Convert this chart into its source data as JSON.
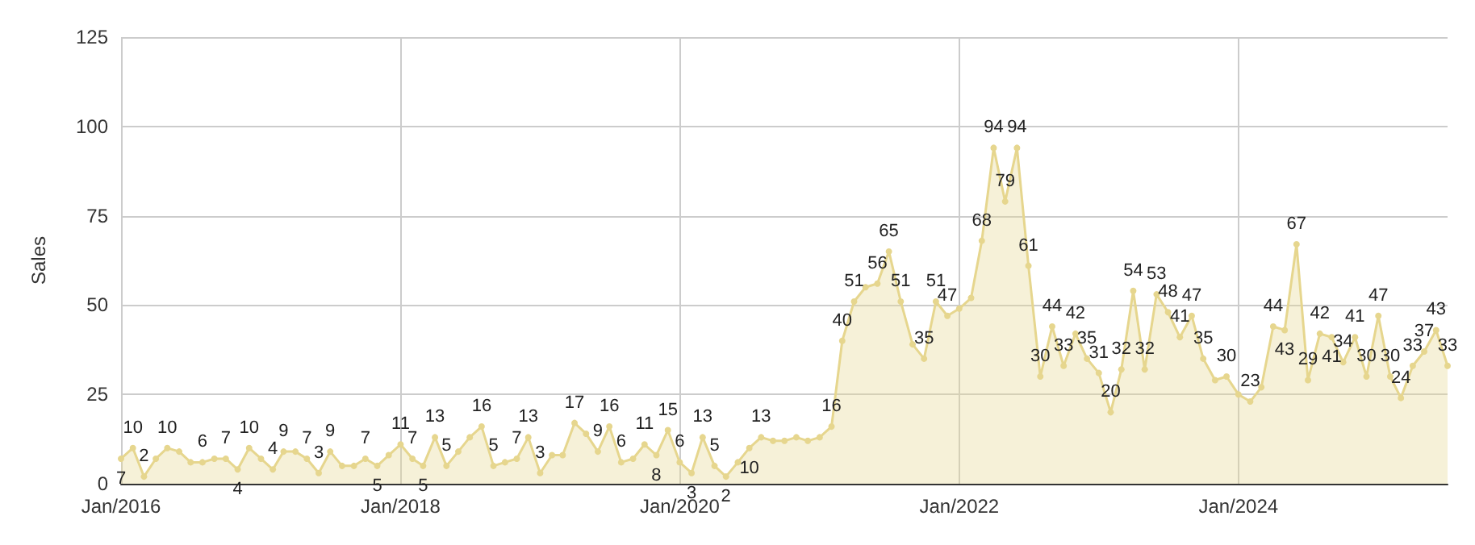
{
  "chart_data": {
    "type": "area",
    "ylabel": "Sales",
    "color": "#e6d68e",
    "grid": true,
    "marker": "circle",
    "line_style": "solid",
    "x": [
      "2016-01",
      "2016-02",
      "2016-03",
      "2016-04",
      "2016-05",
      "2016-06",
      "2016-07",
      "2016-08",
      "2016-09",
      "2016-10",
      "2016-11",
      "2016-12",
      "2017-01",
      "2017-02",
      "2017-03",
      "2017-04",
      "2017-05",
      "2017-06",
      "2017-07",
      "2017-08",
      "2017-09",
      "2017-10",
      "2017-11",
      "2017-12",
      "2018-01",
      "2018-02",
      "2018-03",
      "2018-04",
      "2018-05",
      "2018-06",
      "2018-07",
      "2018-08",
      "2018-09",
      "2018-10",
      "2018-11",
      "2018-12",
      "2019-01",
      "2019-02",
      "2019-03",
      "2019-04",
      "2019-05",
      "2019-06",
      "2019-07",
      "2019-08",
      "2019-09",
      "2019-10",
      "2019-11",
      "2019-12",
      "2020-01",
      "2020-02",
      "2020-03",
      "2020-04",
      "2020-05",
      "2020-06",
      "2020-07",
      "2020-08",
      "2020-09",
      "2020-10",
      "2020-11",
      "2020-12",
      "2021-01",
      "2021-02",
      "2021-03",
      "2021-04",
      "2021-05",
      "2021-06",
      "2021-07",
      "2021-08",
      "2021-09",
      "2021-10",
      "2021-11",
      "2021-12",
      "2022-01",
      "2022-02",
      "2022-03",
      "2022-04",
      "2022-05",
      "2022-06",
      "2022-07",
      "2022-08",
      "2022-09",
      "2022-10",
      "2022-11",
      "2022-12",
      "2023-01",
      "2023-02",
      "2023-03",
      "2023-04",
      "2023-05",
      "2023-06",
      "2023-07",
      "2023-08",
      "2023-09",
      "2023-10",
      "2023-11",
      "2023-12",
      "2024-01",
      "2024-02",
      "2024-03",
      "2024-04",
      "2024-05",
      "2024-06",
      "2024-07",
      "2024-08",
      "2024-09",
      "2024-10",
      "2024-11",
      "2024-12",
      "2025-01",
      "2025-02",
      "2025-03",
      "2025-04",
      "2025-05",
      "2025-06",
      "2025-07"
    ],
    "values": [
      7,
      10,
      2,
      7,
      10,
      9,
      6,
      6,
      7,
      7,
      4,
      10,
      7,
      4,
      9,
      9,
      7,
      3,
      9,
      5,
      5,
      7,
      5,
      8,
      11,
      7,
      5,
      13,
      5,
      9,
      13,
      16,
      5,
      6,
      7,
      13,
      3,
      8,
      8,
      17,
      14,
      9,
      16,
      6,
      7,
      11,
      8,
      15,
      6,
      3,
      13,
      5,
      2,
      6,
      10,
      13,
      12,
      12,
      13,
      12,
      13,
      16,
      40,
      51,
      55,
      56,
      65,
      51,
      39,
      35,
      51,
      47,
      49,
      52,
      68,
      94,
      79,
      94,
      61,
      30,
      44,
      33,
      42,
      35,
      31,
      20,
      32,
      54,
      32,
      53,
      48,
      41,
      47,
      35,
      29,
      30,
      25,
      23,
      27,
      44,
      43,
      67,
      29,
      42,
      41,
      34,
      41,
      30,
      47,
      30,
      24,
      33,
      37,
      43,
      33
    ],
    "value_labels": [
      "7",
      "10",
      "2",
      null,
      "10",
      null,
      null,
      "6",
      null,
      "7",
      "4",
      "10",
      null,
      "4",
      "9",
      null,
      "7",
      "3",
      "9",
      null,
      null,
      "7",
      "5",
      null,
      "11",
      "7",
      "5",
      "13",
      "5",
      null,
      null,
      "16",
      "5",
      null,
      "7",
      "13",
      "3",
      null,
      null,
      "17",
      null,
      "9",
      "16",
      "6",
      null,
      "11",
      "8",
      "15",
      "6",
      "3",
      "13",
      "5",
      "2",
      null,
      "10",
      "13",
      null,
      null,
      null,
      null,
      null,
      "16",
      "40",
      "51",
      null,
      "56",
      "65",
      "51",
      null,
      "35",
      "51",
      "47",
      null,
      null,
      "68",
      "94",
      "79",
      "94",
      "61",
      "30",
      "44",
      "33",
      "42",
      "35",
      "31",
      "20",
      "32",
      "54",
      "32",
      "53",
      "48",
      "41",
      "47",
      "35",
      null,
      "30",
      null,
      "23",
      null,
      "44",
      "43",
      "67",
      "29",
      "42",
      "41",
      "34",
      "41",
      "30",
      "47",
      "30",
      "24",
      "33",
      "37",
      "43",
      "33"
    ],
    "xlim": [
      "2016-01",
      "2025-07"
    ],
    "xticks": [
      {
        "value": "2016-01",
        "label": "Jan/2016"
      },
      {
        "value": "2018-01",
        "label": "Jan/2018"
      },
      {
        "value": "2020-01",
        "label": "Jan/2020"
      },
      {
        "value": "2022-01",
        "label": "Jan/2022"
      },
      {
        "value": "2024-01",
        "label": "Jan/2024"
      }
    ],
    "ylim": [
      0,
      125
    ],
    "yticks": [
      0,
      25,
      50,
      75,
      100,
      125
    ]
  }
}
